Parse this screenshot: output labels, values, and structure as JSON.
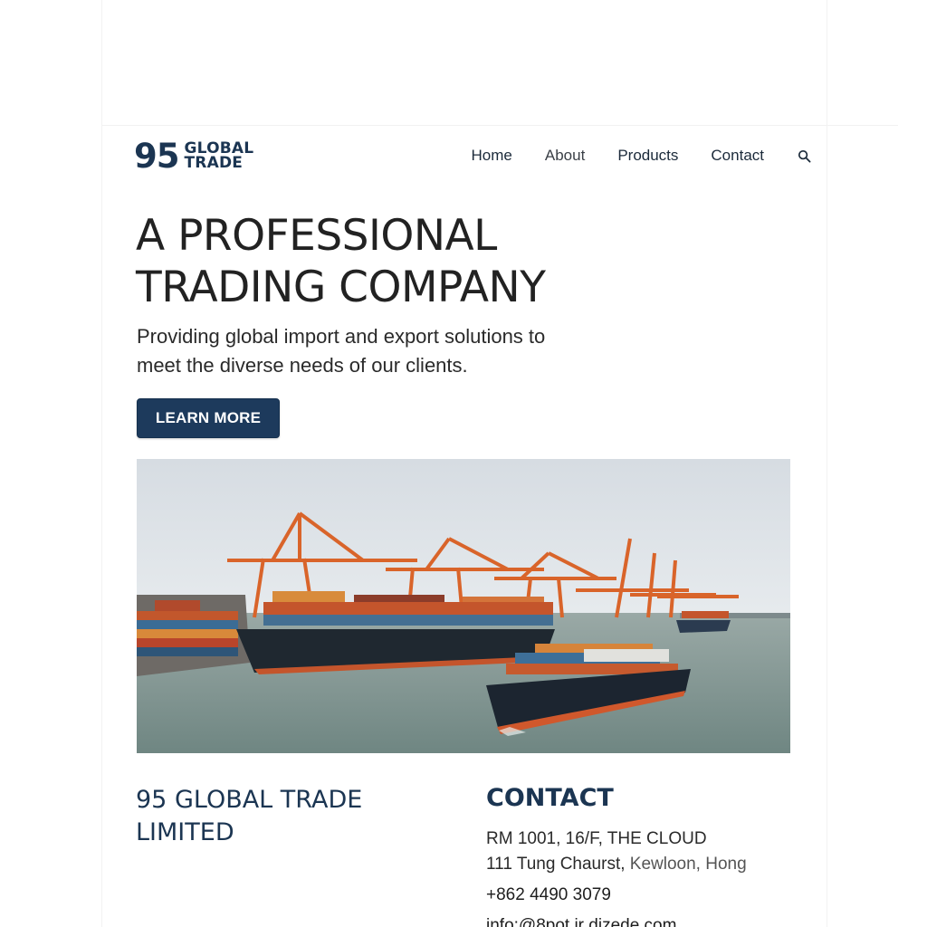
{
  "brand": {
    "number": "95",
    "line1": "GLOBAL",
    "line2": "TRADE",
    "color": "#1b3552"
  },
  "nav": {
    "items": [
      {
        "label": "Home"
      },
      {
        "label": "About"
      },
      {
        "label": "Products"
      },
      {
        "label": "Contact"
      }
    ],
    "search_icon": "search-icon"
  },
  "hero": {
    "title_line1": "A PROFESSIONAL",
    "title_line2": "TRADING COMPANY",
    "subtitle_line1": "Providing global import and export solutions to",
    "subtitle_line2": "meet the diverse needs of our clients.",
    "cta_label": "LEARN MORE",
    "cta_color": "#1d3a5c",
    "image_subject": "container port with orange cranes and cargo ships"
  },
  "footer": {
    "company_line1": "95 GLOBAL TRADE",
    "company_line2": "LIMITED",
    "contact_heading": "CONTACT",
    "address_line1": "RM 1001, 16/F,  THE CLOUD",
    "address_line2_a": "111 Tung Chaurst,",
    "address_line2_b": "Kewloon, Hong",
    "phone": "+862 4490 3079",
    "email": "info:@8pot.ir dizede.com"
  }
}
